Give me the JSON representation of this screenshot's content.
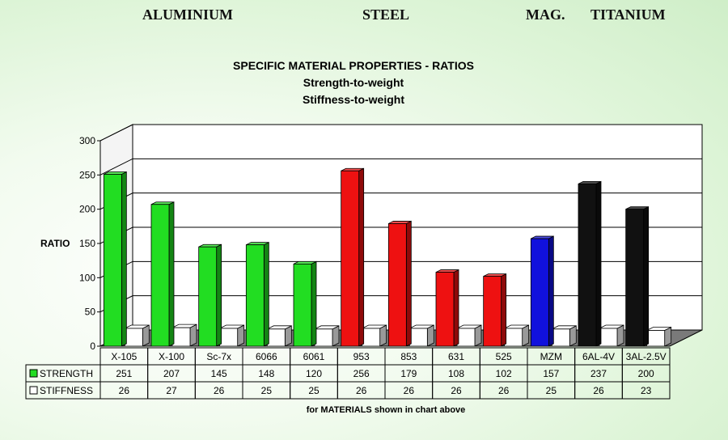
{
  "groups": {
    "aluminium": "ALUMINIUM",
    "steel": "STEEL",
    "mag": "MAG.",
    "titanium": "TITANIUM"
  },
  "title": {
    "line1": "SPECIFIC MATERIAL PROPERTIES - RATIOS",
    "line2": "Strength-to-weight",
    "line3": "Stiffness-to-weight"
  },
  "footnote": "for  MATERIALS shown in chart above",
  "colors": {
    "aluminium": "#22dd22",
    "steel": "#ee1111",
    "mag": "#1111dd",
    "titanium": "#111111",
    "stiffness": "#ffffff"
  },
  "chart_data": {
    "type": "bar",
    "ylabel": "RATIO",
    "ylim": [
      0,
      300
    ],
    "yticks": [
      "0",
      "50",
      "100",
      "150",
      "200",
      "250",
      "300"
    ],
    "grid": true,
    "categories": [
      "X-105",
      "X-100",
      "Sc-7x",
      "6066",
      "6061",
      "953",
      "853",
      "631",
      "525",
      "MZM",
      "6AL-4V",
      "3AL-2.5V"
    ],
    "category_groups": [
      "aluminium",
      "aluminium",
      "aluminium",
      "aluminium",
      "aluminium",
      "steel",
      "steel",
      "steel",
      "steel",
      "mag",
      "titanium",
      "titanium"
    ],
    "series": [
      {
        "name": "STRENGTH",
        "values": [
          251,
          207,
          145,
          148,
          120,
          256,
          179,
          108,
          102,
          157,
          237,
          200
        ]
      },
      {
        "name": "STIFFNESS",
        "values": [
          26,
          27,
          26,
          25,
          25,
          26,
          26,
          26,
          26,
          25,
          26,
          23
        ]
      }
    ]
  }
}
